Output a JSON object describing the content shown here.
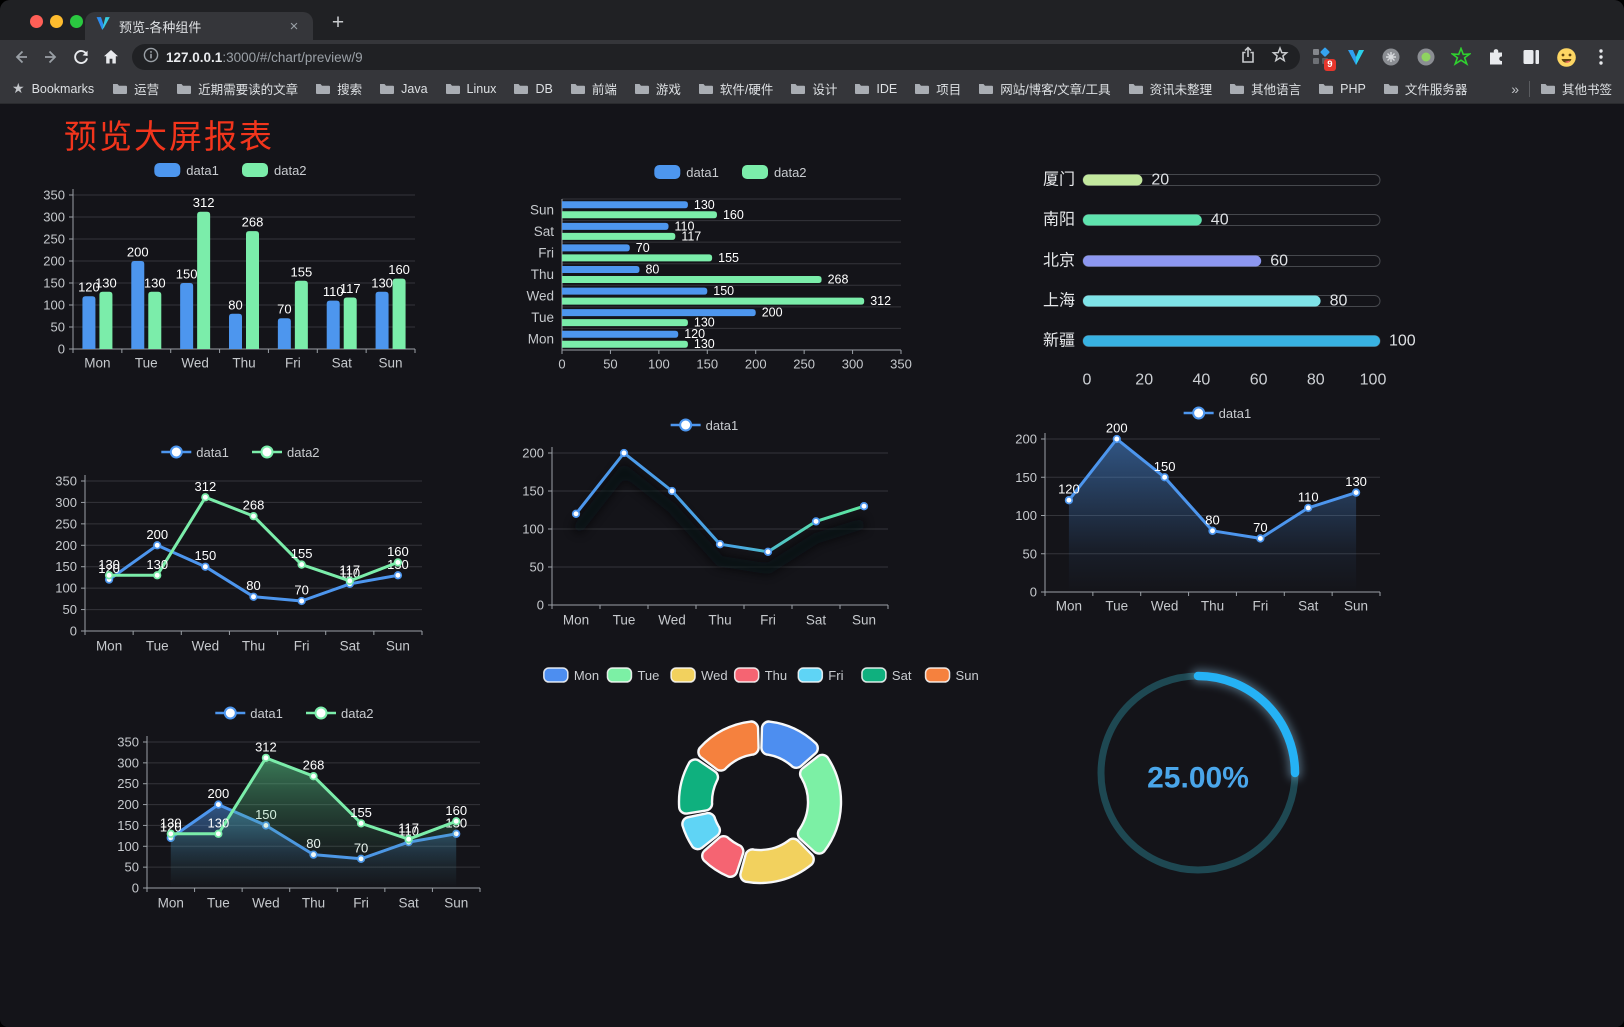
{
  "browser": {
    "traffic_lights": [
      "#ff5f57",
      "#febc2e",
      "#2ac840"
    ],
    "tab": {
      "title": "预览-各种组件",
      "close_glyph": "×",
      "new_tab_glyph": "+"
    },
    "address": {
      "host": "127.0.0.1",
      "rest": ":3000/#/chart/preview/9"
    },
    "bookmarks_label": "Bookmarks",
    "bookmarks": [
      "运营",
      "近期需要读的文章",
      "搜索",
      "Java",
      "Linux",
      "DB",
      "前端",
      "游戏",
      "软件/硬件",
      "设计",
      "IDE",
      "项目",
      "网站/博客/文章/工具",
      "资讯未整理",
      "其他语言",
      "PHP",
      "文件服务器"
    ],
    "bookmarks_overflow": "»",
    "other_bookmarks": "其他书签",
    "extension_badge": "9"
  },
  "page": {
    "title": "预览大屏报表",
    "title_color": "#f2351c"
  },
  "chart_data": [
    {
      "id": "bar-vertical",
      "type": "bar",
      "categories": [
        "Mon",
        "Tue",
        "Wed",
        "Thu",
        "Fri",
        "Sat",
        "Sun"
      ],
      "series": [
        {
          "name": "data1",
          "color": "#4d96ee",
          "values": [
            120,
            200,
            150,
            80,
            70,
            110,
            130
          ]
        },
        {
          "name": "data2",
          "color": "#7bedaa",
          "values": [
            130,
            130,
            312,
            268,
            155,
            117,
            160
          ]
        }
      ],
      "ylim": [
        0,
        350
      ],
      "ystep": 50,
      "grid": true,
      "legend_position": "top"
    },
    {
      "id": "bar-horizontal",
      "type": "bar",
      "orientation": "horizontal",
      "categories": [
        "Sun",
        "Sat",
        "Fri",
        "Thu",
        "Wed",
        "Tue",
        "Mon"
      ],
      "series": [
        {
          "name": "data1",
          "color": "#4d96ee",
          "values": [
            130,
            110,
            70,
            80,
            150,
            200,
            120
          ]
        },
        {
          "name": "data2",
          "color": "#7bedaa",
          "values": [
            160,
            117,
            155,
            268,
            312,
            130,
            130
          ]
        }
      ],
      "xlim": [
        0,
        350
      ],
      "xstep": 50,
      "grid": true,
      "legend_position": "top"
    },
    {
      "id": "progress-bars",
      "type": "bar",
      "subtype": "progress",
      "items": [
        {
          "label": "厦门",
          "value": 20,
          "color": "#c3e89e"
        },
        {
          "label": "南阳",
          "value": 40,
          "color": "#5fe3ae"
        },
        {
          "label": "北京",
          "value": 60,
          "color": "#8d97f0"
        },
        {
          "label": "上海",
          "value": 80,
          "color": "#7fe3e8"
        },
        {
          "label": "新疆",
          "value": 100,
          "color": "#38b2e2"
        }
      ],
      "xlim": [
        0,
        100
      ],
      "xticks": [
        0,
        20,
        40,
        60,
        80,
        100
      ]
    },
    {
      "id": "line-two-series",
      "type": "line",
      "categories": [
        "Mon",
        "Tue",
        "Wed",
        "Thu",
        "Fri",
        "Sat",
        "Sun"
      ],
      "series": [
        {
          "name": "data1",
          "color": "#4d96ee",
          "values": [
            120,
            200,
            150,
            80,
            70,
            110,
            130
          ]
        },
        {
          "name": "data2",
          "color": "#7bedaa",
          "values": [
            130,
            130,
            312,
            268,
            155,
            117,
            160
          ]
        }
      ],
      "ylim": [
        0,
        350
      ],
      "ystep": 50,
      "labels": true,
      "legend_position": "top"
    },
    {
      "id": "line-gradient",
      "type": "line",
      "categories": [
        "Mon",
        "Tue",
        "Wed",
        "Thu",
        "Fri",
        "Sat",
        "Sun"
      ],
      "series": [
        {
          "name": "data1",
          "color": "#4d96ee",
          "color_end": "#5ee6a0",
          "values": [
            120,
            200,
            150,
            80,
            70,
            110,
            130
          ]
        }
      ],
      "ylim": [
        0,
        200
      ],
      "ystep": 50,
      "labels": false,
      "gradient_line": true,
      "shadow": true,
      "legend_position": "top"
    },
    {
      "id": "line-area",
      "type": "area",
      "categories": [
        "Mon",
        "Tue",
        "Wed",
        "Thu",
        "Fri",
        "Sat",
        "Sun"
      ],
      "series": [
        {
          "name": "data1",
          "color": "#4d96ee",
          "values": [
            120,
            200,
            150,
            80,
            70,
            110,
            130
          ],
          "area": true
        }
      ],
      "ylim": [
        0,
        200
      ],
      "ystep": 50,
      "labels": true,
      "legend_position": "top"
    },
    {
      "id": "line-two-area",
      "type": "area",
      "categories": [
        "Mon",
        "Tue",
        "Wed",
        "Thu",
        "Fri",
        "Sat",
        "Sun"
      ],
      "series": [
        {
          "name": "data1",
          "color": "#4d96ee",
          "values": [
            120,
            200,
            150,
            80,
            70,
            110,
            130
          ],
          "area": true
        },
        {
          "name": "data2",
          "color": "#7bedaa",
          "values": [
            130,
            130,
            312,
            268,
            155,
            117,
            160
          ],
          "area": true
        }
      ],
      "ylim": [
        0,
        350
      ],
      "ystep": 50,
      "labels": true,
      "legend_position": "top"
    },
    {
      "id": "donut",
      "type": "pie",
      "categories": [
        "Mon",
        "Tue",
        "Wed",
        "Thu",
        "Fri",
        "Sat",
        "Sun"
      ],
      "values": [
        120,
        200,
        150,
        80,
        70,
        110,
        130
      ],
      "colors": [
        "#4d8ef0",
        "#7cf0a5",
        "#f2d15e",
        "#f56472",
        "#5fd4f5",
        "#0fb07e",
        "#f5813e"
      ],
      "legend_position": "top",
      "inner_radius_ratio": 0.59
    },
    {
      "id": "gauge",
      "type": "gauge",
      "value": 25,
      "display": "25.00%",
      "track_color": "#1e4852",
      "arc_color": "#25b2f5",
      "text_color": "#4aa6ea"
    }
  ]
}
